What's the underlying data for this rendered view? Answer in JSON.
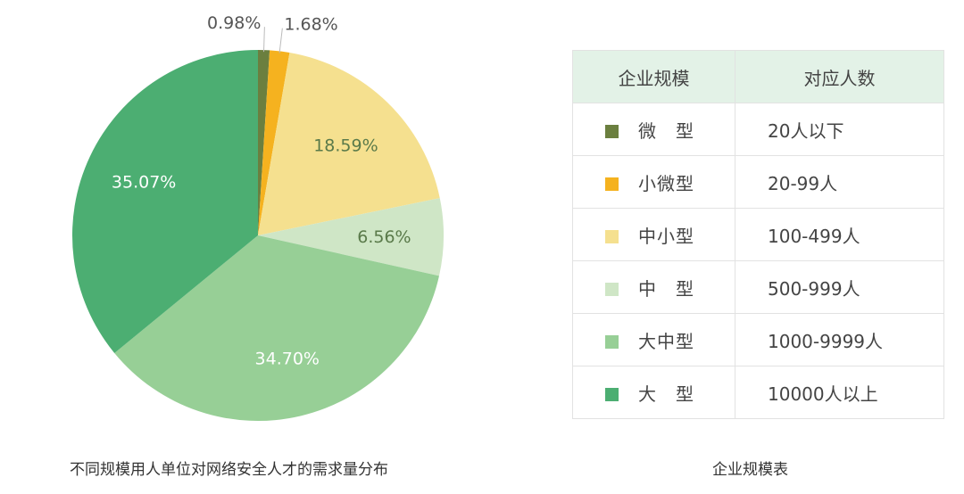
{
  "chart_data": {
    "type": "pie",
    "title": "不同规模用人单位对网络安全人才的需求量分布",
    "slices": [
      {
        "label": "微型",
        "value": 0.98,
        "display": "0.98%",
        "color": "#6b7f3f"
      },
      {
        "label": "小微型",
        "value": 1.68,
        "display": "1.68%",
        "color": "#f5b21f"
      },
      {
        "label": "中小型",
        "value": 18.59,
        "display": "18.59%",
        "color": "#f5e08f"
      },
      {
        "label": "中型",
        "value": 6.56,
        "display": "6.56%",
        "color": "#cfe6c6"
      },
      {
        "label": "大中型",
        "value": 34.7,
        "display": "34.70%",
        "color": "#97cf96"
      },
      {
        "label": "大型",
        "value": 35.07,
        "display": "35.07%",
        "color": "#4cae72"
      }
    ]
  },
  "table": {
    "headers": [
      "企业规模",
      "对应人数"
    ],
    "rows": [
      {
        "size": "微　型",
        "count": "20人以下",
        "color": "#6b7f3f"
      },
      {
        "size": "小微型",
        "count": "20-99人",
        "color": "#f5b21f"
      },
      {
        "size": "中小型",
        "count": "100-499人",
        "color": "#f5e08f"
      },
      {
        "size": "中　型",
        "count": "500-999人",
        "color": "#cfe6c6"
      },
      {
        "size": "大中型",
        "count": "1000-9999人",
        "color": "#97cf96"
      },
      {
        "size": "大　型",
        "count": "10000人以上",
        "color": "#4cae72"
      }
    ],
    "caption": "企业规模表"
  },
  "captions": {
    "pie": "不同规模用人单位对网络安全人才的需求量分布"
  }
}
